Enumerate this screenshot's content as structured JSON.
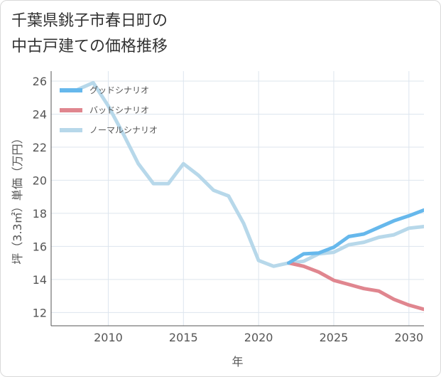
{
  "title_line1": "千葉県銚子市春日町の",
  "title_line2": "中古戸建ての価格推移",
  "chart_data": {
    "type": "line",
    "title": "千葉県銚子市春日町の中古戸建ての価格推移",
    "xlabel": "年",
    "ylabel": "坪（3.3㎡）単価（万円）",
    "xlim": [
      2006.2,
      2031
    ],
    "ylim": [
      11.2,
      26.6
    ],
    "xticks": [
      2010,
      2015,
      2020,
      2025,
      2030
    ],
    "yticks": [
      12,
      14,
      16,
      18,
      20,
      22,
      24,
      26
    ],
    "grid": true,
    "legend_position": "top-left",
    "series": [
      {
        "name": "グッドシナリオ",
        "color": "#66b8ec",
        "x": [
          2022,
          2023,
          2024,
          2025,
          2026,
          2027,
          2028,
          2029,
          2030,
          2031
        ],
        "y": [
          15.0,
          15.55,
          15.6,
          15.95,
          16.6,
          16.75,
          17.15,
          17.55,
          17.85,
          18.2
        ]
      },
      {
        "name": "バッドシナリオ",
        "color": "#e0868f",
        "x": [
          2022,
          2023,
          2024,
          2025,
          2026,
          2027,
          2028,
          2029,
          2030,
          2031
        ],
        "y": [
          15.0,
          14.8,
          14.45,
          13.95,
          13.7,
          13.45,
          13.3,
          12.8,
          12.45,
          12.2
        ]
      },
      {
        "name": "ノーマルシナリオ",
        "color": "#b7d8ea",
        "x": [
          2008,
          2009,
          2010,
          2011,
          2012,
          2013,
          2014,
          2015,
          2016,
          2017,
          2018,
          2019,
          2020,
          2021,
          2022,
          2023,
          2024,
          2025,
          2026,
          2027,
          2028,
          2029,
          2030,
          2031
        ],
        "y": [
          25.5,
          25.9,
          24.5,
          22.8,
          21.0,
          19.8,
          19.8,
          21.0,
          20.3,
          19.4,
          19.05,
          17.4,
          15.15,
          14.8,
          15.0,
          15.1,
          15.55,
          15.65,
          16.1,
          16.25,
          16.55,
          16.7,
          17.1,
          17.2
        ]
      }
    ]
  }
}
